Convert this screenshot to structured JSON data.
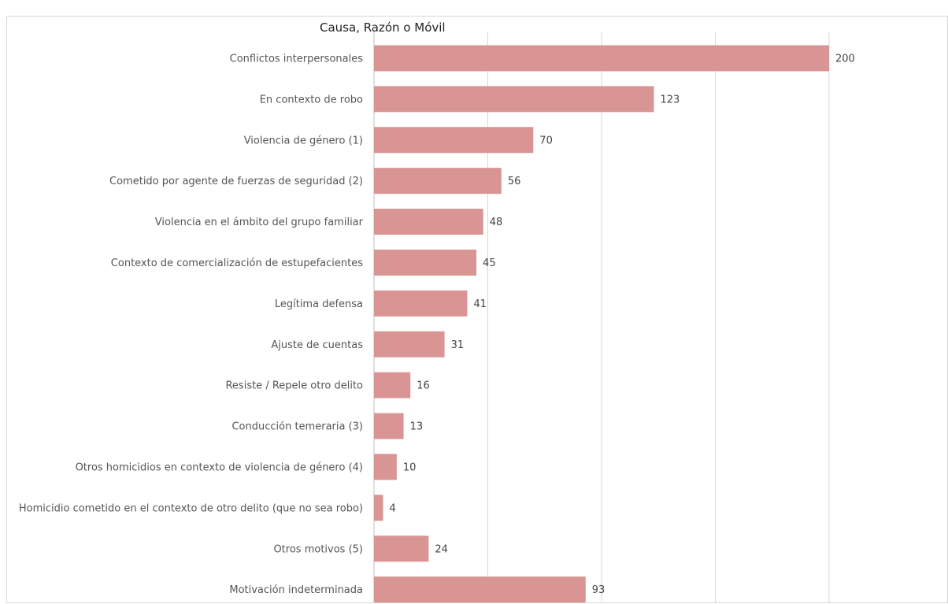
{
  "chart_data": {
    "type": "bar",
    "orientation": "horizontal",
    "title": "",
    "ylabel": "Causa, Razón o Móvil",
    "xlabel": "",
    "xlim": [
      0,
      200
    ],
    "grid": true,
    "color": "#d99593",
    "categories": [
      "Conflictos interpersonales",
      "En contexto de robo",
      "Violencia de género (1)",
      "Cometido por agente de fuerzas de seguridad (2)",
      "Violencia en el ámbito del grupo familiar",
      "Contexto de comercialización de estupefacientes",
      "Legítima defensa",
      "Ajuste de cuentas",
      "Resiste / Repele otro delito",
      "Conducción temeraria (3)",
      "Otros homicidios en contexto de violencia de género (4)",
      "Homicidio cometido en el contexto de otro delito (que no sea robo)",
      "Otros motivos (5)",
      "Motivación indeterminada"
    ],
    "values": [
      200,
      123,
      70,
      56,
      48,
      45,
      41,
      31,
      16,
      13,
      10,
      4,
      24,
      93
    ]
  }
}
